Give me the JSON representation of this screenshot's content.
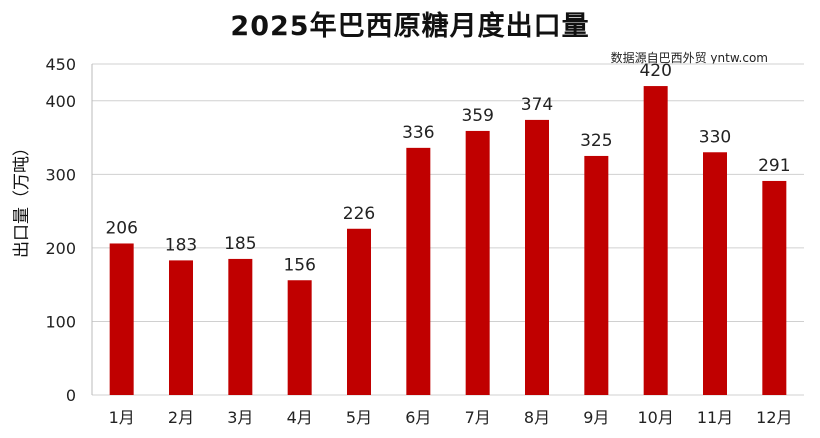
{
  "chart_data": {
    "type": "bar",
    "title": "2025年巴西原糖月度出口量",
    "source": "数据源自巴西外贸 yntw.com",
    "xlabel": "",
    "ylabel": "出口量（万吨）",
    "categories": [
      "1月",
      "2月",
      "3月",
      "4月",
      "5月",
      "6月",
      "7月",
      "8月",
      "9月",
      "10月",
      "11月",
      "12月"
    ],
    "values": [
      206,
      183,
      185,
      156,
      226,
      336,
      359,
      374,
      325,
      420,
      330,
      291
    ],
    "ylim": [
      0,
      450
    ],
    "yticks": [
      0,
      100,
      200,
      300,
      400,
      450
    ],
    "bar_color": "#c00000",
    "grid": true,
    "legend": "none"
  }
}
